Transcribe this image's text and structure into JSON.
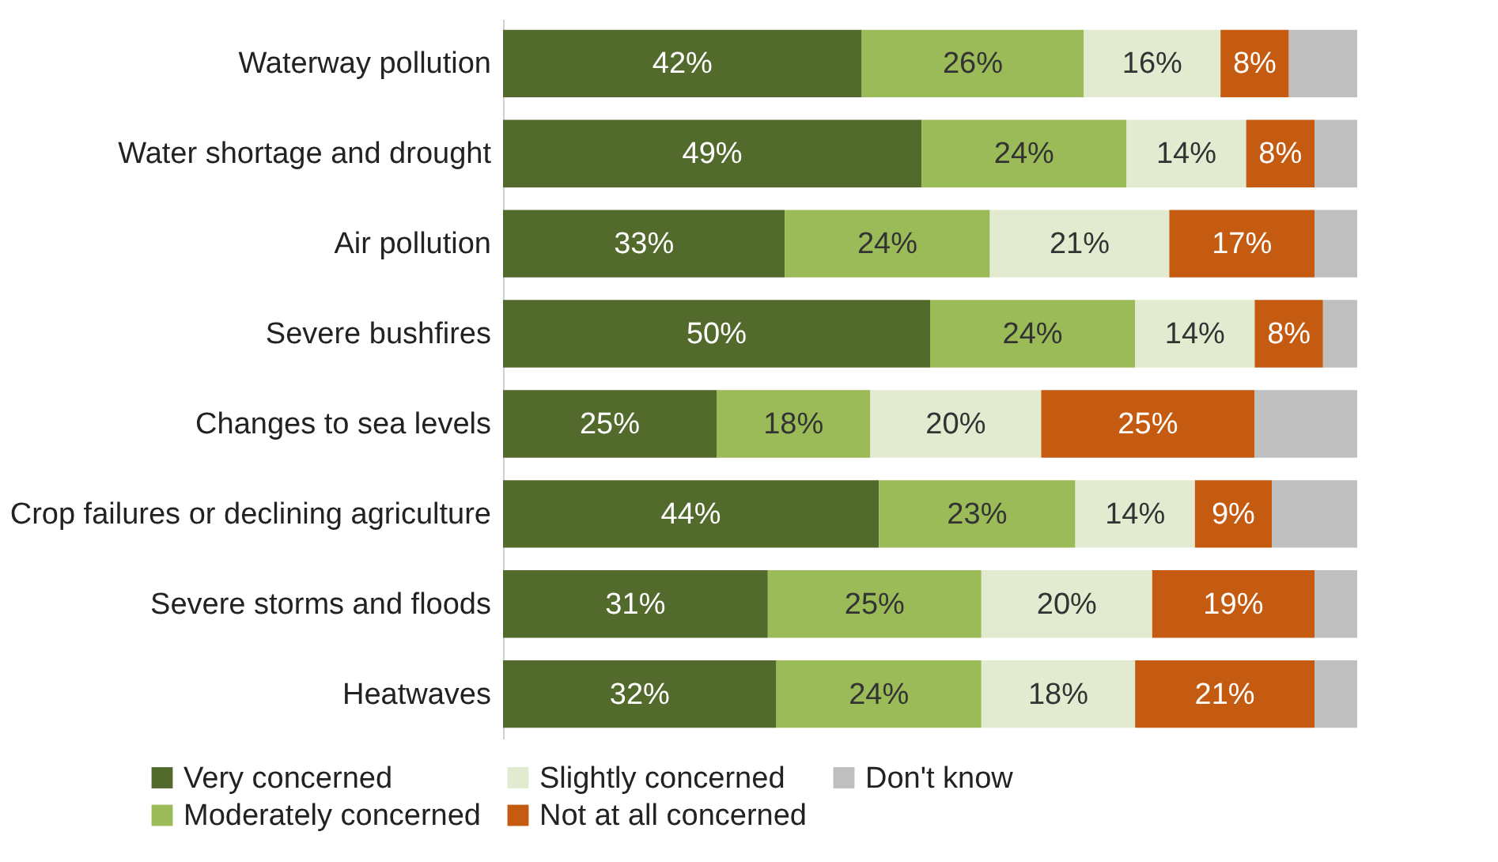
{
  "chart_data": {
    "type": "bar",
    "orientation": "horizontal",
    "stacked": true,
    "legend": "bottom",
    "categories": [
      "Waterway pollution",
      "Water shortage and drought",
      "Air pollution",
      "Severe bushfires",
      "Changes to sea levels",
      "Crop failures or declining agriculture",
      "Severe storms and floods",
      "Heatwaves"
    ],
    "series": [
      {
        "name": "Very concerned",
        "color": "#536a2d",
        "values": [
          42,
          49,
          33,
          50,
          25,
          44,
          31,
          32
        ],
        "value_labels": [
          "42%",
          "49%",
          "33%",
          "50%",
          "25%",
          "44%",
          "31%",
          "32%"
        ]
      },
      {
        "name": "Moderately concerned",
        "color": "#9bbb59",
        "values": [
          26,
          24,
          24,
          24,
          18,
          23,
          25,
          24
        ],
        "value_labels": [
          "26%",
          "24%",
          "24%",
          "24%",
          "18%",
          "23%",
          "25%",
          "24%"
        ]
      },
      {
        "name": "Slightly concerned",
        "color": "#e2ebd0",
        "values": [
          16,
          14,
          21,
          14,
          20,
          14,
          20,
          18
        ],
        "value_labels": [
          "16%",
          "14%",
          "21%",
          "14%",
          "20%",
          "14%",
          "20%",
          "18%"
        ]
      },
      {
        "name": "Not at all concerned",
        "color": "#c55a11",
        "values": [
          8,
          8,
          17,
          8,
          25,
          9,
          19,
          21
        ],
        "value_labels": [
          "8%",
          "8%",
          "17%",
          "8%",
          "25%",
          "9%",
          "19%",
          "21%"
        ]
      },
      {
        "name": "Don't know",
        "color": "#bfbfbf",
        "values": [
          8,
          5,
          5,
          4,
          12,
          10,
          5,
          5
        ],
        "value_labels": [
          null,
          null,
          null,
          null,
          null,
          null,
          null,
          null
        ]
      }
    ]
  }
}
